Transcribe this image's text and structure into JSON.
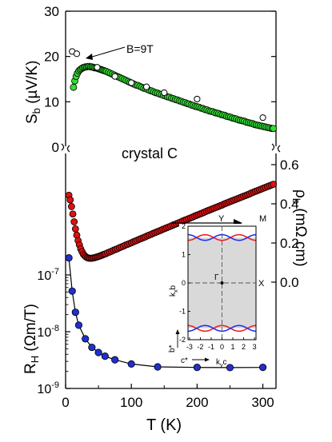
{
  "figure": {
    "annotation_field": "B=9T",
    "sample_label": "crystal C",
    "xlabel": "T (K)"
  },
  "chart_data": [
    {
      "panel": "Seebeck",
      "type": "scatter",
      "ylabel": "S",
      "ylabel_sub": "b",
      "ylabel_unit": " (µV/K)",
      "xlim": [
        0,
        320
      ],
      "ylim": [
        0,
        30
      ],
      "yticks": [
        "0",
        "10",
        "20",
        "30"
      ],
      "colors": {
        "zero_field": "#33dd33",
        "field": "#ffffff"
      },
      "series": [
        {
          "name": "",
          "x": [
            12,
            14,
            16,
            18,
            20,
            22,
            24,
            26,
            28,
            30,
            32,
            34,
            36,
            38,
            40,
            42,
            44,
            46,
            48,
            50,
            52,
            54,
            56,
            58,
            60,
            62,
            65,
            68,
            71,
            74,
            77,
            80,
            83,
            86,
            89,
            92,
            95,
            98,
            101,
            104,
            107,
            110,
            113,
            116,
            119,
            122,
            125,
            128,
            131,
            134,
            137,
            140,
            143,
            146,
            149,
            152,
            155,
            158,
            161,
            164,
            167,
            170,
            173,
            176,
            179,
            182,
            185,
            188,
            191,
            194,
            197,
            200,
            203,
            206,
            209,
            212,
            215,
            218,
            221,
            224,
            227,
            230,
            233,
            236,
            239,
            242,
            245,
            248,
            251,
            254,
            257,
            260,
            263,
            266,
            269,
            272,
            275,
            278,
            281,
            284,
            287,
            290,
            293,
            296,
            299,
            302,
            305,
            308,
            311,
            314,
            316
          ],
          "y": [
            13.2,
            14.6,
            15.6,
            16.3,
            16.8,
            17.1,
            17.3,
            17.5,
            17.6,
            17.7,
            17.7,
            17.8,
            17.8,
            17.7,
            17.7,
            17.6,
            17.5,
            17.5,
            17.4,
            17.3,
            17.2,
            17.1,
            17.0,
            16.9,
            16.8,
            16.7,
            16.5,
            16.3,
            16.1,
            15.9,
            15.7,
            15.5,
            15.3,
            15.1,
            14.9,
            14.7,
            14.5,
            14.3,
            14.1,
            13.9,
            13.7,
            13.6,
            13.4,
            13.2,
            13.0,
            12.9,
            12.7,
            12.5,
            12.4,
            12.2,
            12.0,
            11.9,
            11.7,
            11.6,
            11.4,
            11.3,
            11.1,
            11.0,
            10.8,
            10.7,
            10.5,
            10.4,
            10.2,
            10.1,
            9.9,
            9.8,
            9.6,
            9.5,
            9.3,
            9.2,
            9.0,
            8.9,
            8.8,
            8.6,
            8.5,
            8.3,
            8.2,
            8.0,
            7.9,
            7.8,
            7.6,
            7.5,
            7.4,
            7.2,
            7.1,
            7.0,
            6.8,
            6.7,
            6.6,
            6.4,
            6.3,
            6.2,
            6.0,
            5.9,
            5.8,
            5.7,
            5.5,
            5.4,
            5.3,
            5.2,
            5.0,
            4.9,
            4.8,
            4.7,
            4.6,
            4.5,
            4.4,
            4.3,
            4.2,
            4.1,
            4.1
          ]
        },
        {
          "name": "B=9T",
          "x": [
            10,
            17,
            48,
            75,
            100,
            123,
            150,
            200,
            300
          ],
          "y": [
            21.1,
            20.6,
            17.6,
            15.6,
            14.2,
            13.3,
            12.0,
            10.6,
            6.5
          ]
        }
      ]
    },
    {
      "panel": "Resistivity",
      "type": "scatter",
      "ylabel": "ρ",
      "ylabel_sub": "b",
      "ylabel_unit": " (mΩ cm)",
      "axis_side": "right",
      "ylim": [
        -0.05,
        0.6
      ],
      "yticks": [
        "0.0",
        "0.2",
        "0.4",
        "0.6"
      ],
      "colors": {
        "points": "#dd1111"
      },
      "series": [
        {
          "name": "",
          "x": [
            5,
            7,
            9,
            11,
            13,
            15,
            17,
            19,
            21,
            23,
            25,
            27,
            29,
            31,
            33,
            35,
            37,
            39,
            41,
            43,
            45,
            47,
            49,
            51,
            53,
            55,
            57,
            59,
            61,
            64,
            67,
            70,
            73,
            76,
            79,
            82,
            85,
            88,
            91,
            94,
            97,
            100,
            103,
            106,
            109,
            112,
            115,
            118,
            121,
            124,
            127,
            130,
            133,
            136,
            139,
            142,
            145,
            148,
            151,
            154,
            157,
            160,
            163,
            166,
            169,
            172,
            175,
            178,
            181,
            184,
            187,
            190,
            193,
            196,
            199,
            202,
            205,
            208,
            211,
            214,
            217,
            220,
            223,
            226,
            229,
            232,
            235,
            238,
            241,
            244,
            247,
            250,
            253,
            256,
            259,
            262,
            265,
            268,
            271,
            274,
            277,
            280,
            283,
            286,
            289,
            292,
            295,
            298,
            301,
            304,
            307,
            310,
            313,
            316
          ],
          "y": [
            0.444,
            0.42,
            0.386,
            0.348,
            0.308,
            0.272,
            0.24,
            0.212,
            0.19,
            0.17,
            0.155,
            0.143,
            0.135,
            0.129,
            0.125,
            0.123,
            0.122,
            0.122,
            0.123,
            0.124,
            0.126,
            0.128,
            0.13,
            0.132,
            0.135,
            0.137,
            0.14,
            0.143,
            0.145,
            0.15,
            0.154,
            0.158,
            0.163,
            0.167,
            0.171,
            0.176,
            0.18,
            0.184,
            0.189,
            0.193,
            0.197,
            0.201,
            0.206,
            0.21,
            0.214,
            0.219,
            0.223,
            0.227,
            0.231,
            0.236,
            0.24,
            0.244,
            0.249,
            0.253,
            0.257,
            0.261,
            0.265,
            0.27,
            0.274,
            0.278,
            0.282,
            0.286,
            0.291,
            0.295,
            0.299,
            0.303,
            0.307,
            0.312,
            0.316,
            0.32,
            0.324,
            0.328,
            0.332,
            0.337,
            0.341,
            0.345,
            0.349,
            0.353,
            0.357,
            0.362,
            0.366,
            0.37,
            0.374,
            0.378,
            0.382,
            0.386,
            0.39,
            0.394,
            0.399,
            0.403,
            0.407,
            0.411,
            0.415,
            0.419,
            0.423,
            0.427,
            0.431,
            0.435,
            0.439,
            0.443,
            0.447,
            0.451,
            0.456,
            0.46,
            0.464,
            0.468,
            0.472,
            0.476,
            0.48,
            0.484,
            0.488,
            0.492,
            0.496,
            0.5
          ]
        }
      ]
    },
    {
      "panel": "Hall",
      "type": "line",
      "ylabel": "R",
      "ylabel_sub": "H",
      "ylabel_unit": " (Ωm/T)",
      "yscale": "log",
      "ylim": [
        1e-09,
        3e-07
      ],
      "yticks": [
        {
          "base": "10",
          "exp": "-7"
        },
        {
          "base": "10",
          "exp": "-8"
        },
        {
          "base": "10",
          "exp": "-9"
        }
      ],
      "xticks": [
        "0",
        "100",
        "200",
        "300"
      ],
      "colors": {
        "points": "#1f2fd0"
      },
      "series": [
        {
          "name": "",
          "x": [
            5,
            10,
            15,
            20,
            30,
            40,
            50,
            60,
            75,
            100,
            140,
            200,
            250,
            300
          ],
          "y": [
            2e-07,
            5.2e-08,
            2.2e-08,
            1.3e-08,
            7.5e-09,
            5.3e-09,
            4.3e-09,
            3.7e-09,
            3.2e-09,
            2.7e-09,
            2.4e-09,
            2.35e-09,
            2.33e-09,
            2.35e-09
          ]
        }
      ]
    },
    {
      "panel": "Fermi surface inset",
      "type": "line",
      "labels": {
        "Y": "Y",
        "M": "M",
        "Gamma": "Γ",
        "X": "X",
        "ylabel": "k",
        "ylabel_sub": "x",
        "ylabel_after": "b",
        "xlabel": "k",
        "xlabel_sub": "y",
        "xlabel_after": "c",
        "b_star": "b*",
        "c_star": "c*"
      },
      "xlim": [
        -3.14,
        3.14
      ],
      "ylim": [
        -2,
        2
      ],
      "xticks": [
        "-3",
        "-2",
        "-1",
        "0",
        "1",
        "2",
        "3"
      ],
      "yticks": [
        "2",
        "1",
        "0",
        "-1",
        "-2"
      ],
      "colors": {
        "red": "#ee2222",
        "blue": "#2233ee",
        "shade": "#d9d9d9"
      },
      "series": [
        {
          "name": "",
          "color": "red",
          "amplitude": 0.1,
          "mean": 1.6,
          "relation": "mean - amplitude*cos(2x)"
        },
        {
          "name": "",
          "color": "blue",
          "amplitude": 0.1,
          "mean": 1.6,
          "relation": "mean + amplitude*cos(2x)"
        }
      ]
    }
  ]
}
